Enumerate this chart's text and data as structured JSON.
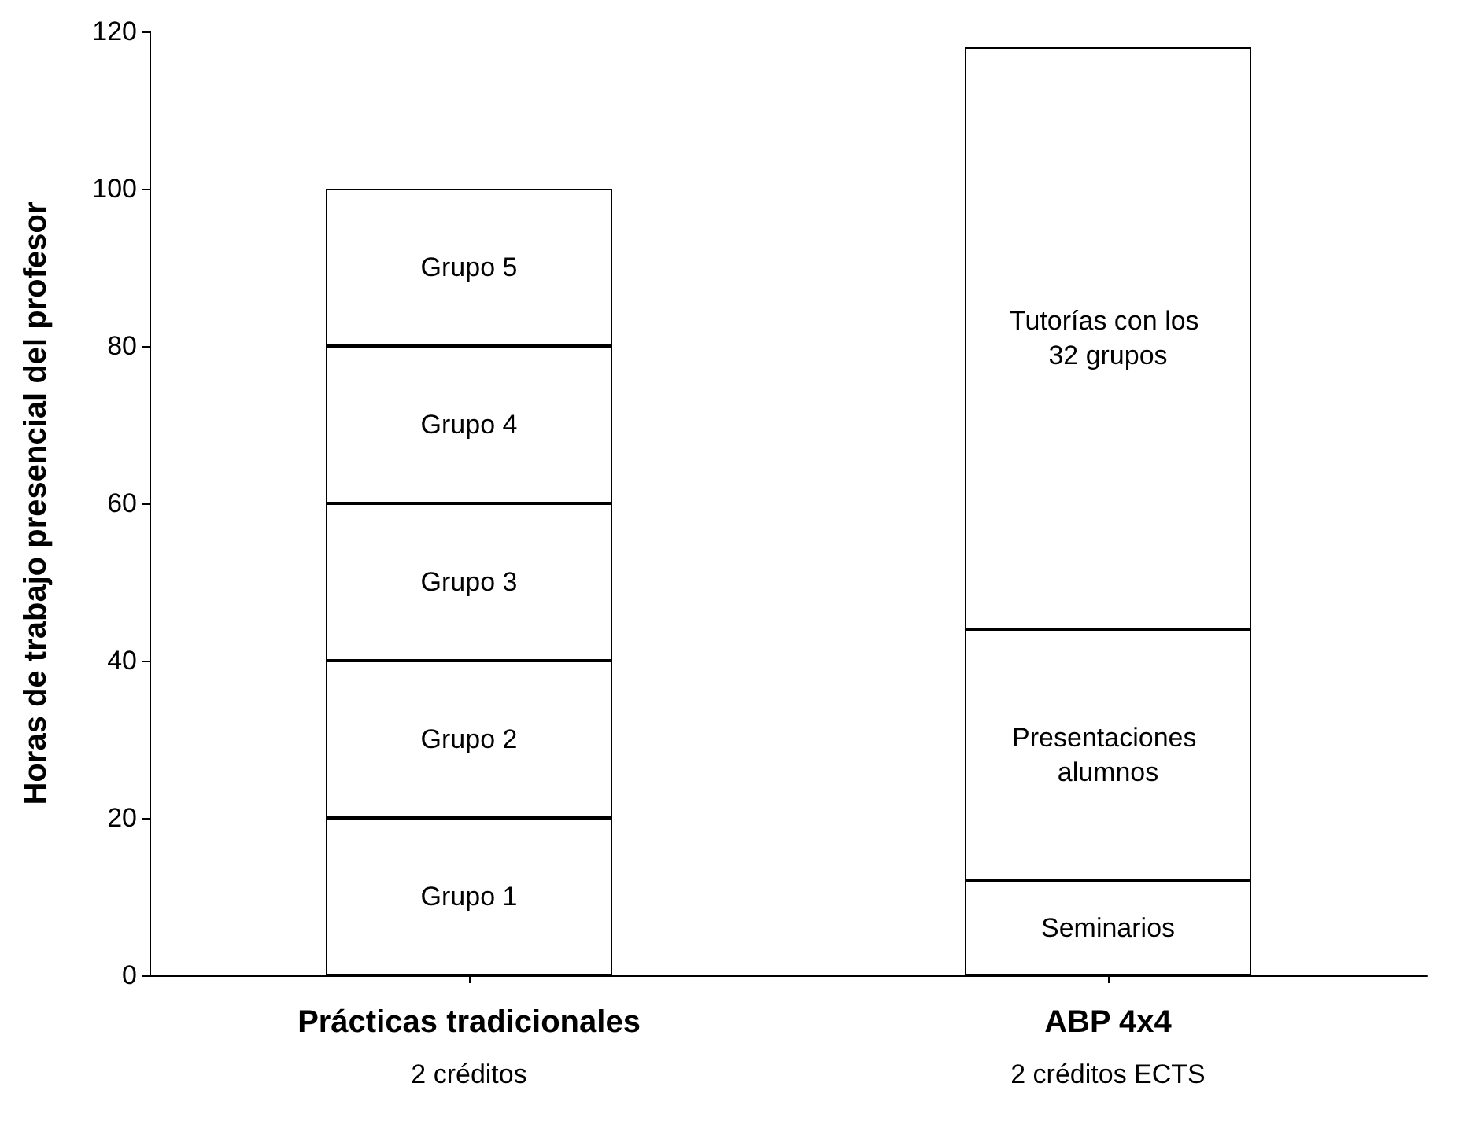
{
  "chart_data": {
    "type": "bar",
    "stacked": true,
    "ylabel": "Horas de trabajo presencial del profesor",
    "categories": [
      "Prácticas tradicionales",
      "ABP 4x4"
    ],
    "series": [
      {
        "name": "Grupo 1",
        "color": "#ffffff",
        "values": [
          20,
          null
        ]
      },
      {
        "name": "Grupo 2",
        "color": "#ffffff",
        "values": [
          20,
          null
        ]
      },
      {
        "name": "Grupo 3",
        "color": "#ffffff",
        "values": [
          20,
          null
        ]
      },
      {
        "name": "Grupo 4",
        "color": "#ffffff",
        "values": [
          20,
          null
        ]
      },
      {
        "name": "Grupo 5",
        "color": "#ffffff",
        "values": [
          20,
          null
        ]
      },
      {
        "name": "Seminarios",
        "color": "#ffffff",
        "values": [
          null,
          12
        ]
      },
      {
        "name": "Presentaciones alumnos",
        "color": "#ffffff",
        "values": [
          null,
          32
        ]
      },
      {
        "name": "Tutorías con los 32 grupos",
        "color": "#ffffff",
        "values": [
          null,
          74
        ]
      }
    ],
    "ylim": [
      0,
      120
    ],
    "yticks": [
      0,
      20,
      40,
      60,
      80,
      100,
      120
    ],
    "grid": false,
    "legend": false,
    "annotations": [
      "2 créditos",
      "2 créditos ECTS"
    ]
  }
}
